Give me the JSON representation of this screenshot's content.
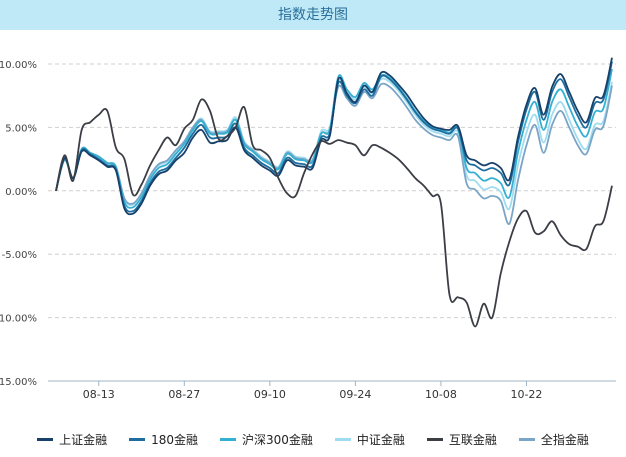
{
  "title": "指数走势图",
  "chart_data": {
    "type": "line",
    "y_ticks": [
      "10.00%",
      "5.00%",
      "0.00%",
      "-5.00%",
      "-10.00%",
      "-15.00%"
    ],
    "ylim": [
      -15,
      12
    ],
    "x_ticks": [
      "08-13",
      "08-27",
      "09-10",
      "09-24",
      "10-08",
      "10-22"
    ],
    "x_tick_index": [
      5,
      15,
      25,
      35,
      45,
      55
    ],
    "x_count": 66,
    "grid": true,
    "legend_position": "bottom",
    "series": [
      {
        "name": "上证金融",
        "color": "#17416b",
        "values": [
          0,
          2.6,
          1.0,
          3.1,
          2.8,
          2.4,
          1.9,
          1.6,
          -1.4,
          -1.8,
          -1.0,
          0.4,
          1.3,
          1.6,
          2.4,
          3.0,
          4.2,
          4.8,
          3.8,
          3.9,
          4.0,
          5.0,
          3.2,
          2.6,
          2.0,
          1.6,
          1.2,
          2.4,
          2.0,
          1.9,
          1.8,
          4.0,
          4.3,
          8.8,
          7.7,
          7.0,
          8.3,
          7.8,
          9.3,
          9.1,
          8.4,
          7.6,
          6.6,
          5.7,
          5.1,
          4.9,
          4.8,
          5.1,
          2.8,
          2.4,
          2.0,
          2.2,
          1.8,
          0.9,
          4.2,
          6.8,
          8.1,
          6.0,
          8.2,
          9.2,
          7.8,
          6.3,
          5.4,
          7.3,
          7.5,
          10.5
        ]
      },
      {
        "name": "180金融",
        "color": "#1d6e9e",
        "values": [
          0,
          2.5,
          1.0,
          3.2,
          2.9,
          2.5,
          2.0,
          1.7,
          -1.2,
          -1.6,
          -0.8,
          0.6,
          1.5,
          1.8,
          2.6,
          3.4,
          4.5,
          5.2,
          4.2,
          4.2,
          4.3,
          5.3,
          3.4,
          2.8,
          2.2,
          1.8,
          1.4,
          2.6,
          2.2,
          2.1,
          2.0,
          4.2,
          4.5,
          8.5,
          7.5,
          6.9,
          8.0,
          7.5,
          9.0,
          8.8,
          8.1,
          7.2,
          6.2,
          5.4,
          4.9,
          4.7,
          4.5,
          4.9,
          2.4,
          2.0,
          1.6,
          1.8,
          1.4,
          0.5,
          3.8,
          6.4,
          7.8,
          5.6,
          7.8,
          8.8,
          7.4,
          5.9,
          5.0,
          6.9,
          7.2,
          10.2
        ]
      },
      {
        "name": "沪深300金融",
        "color": "#35b0d2",
        "values": [
          0,
          2.5,
          1.0,
          3.3,
          3.0,
          2.7,
          2.2,
          1.9,
          -0.9,
          -1.3,
          -0.5,
          0.9,
          1.8,
          2.1,
          2.9,
          3.7,
          4.8,
          5.5,
          4.5,
          4.5,
          4.6,
          5.6,
          3.7,
          3.1,
          2.5,
          2.1,
          1.7,
          2.9,
          2.5,
          2.4,
          2.3,
          4.5,
          4.8,
          9.0,
          8.0,
          7.4,
          8.5,
          8.0,
          9.1,
          8.9,
          8.2,
          7.3,
          6.3,
          5.5,
          5.0,
          4.8,
          4.6,
          4.9,
          1.8,
          1.4,
          0.8,
          1.0,
          0.6,
          -0.5,
          3.0,
          5.6,
          7.0,
          4.8,
          7.0,
          8.0,
          6.6,
          5.1,
          4.3,
          6.2,
          6.5,
          9.6
        ]
      },
      {
        "name": "中证金融",
        "color": "#9fdcf0",
        "values": [
          0,
          2.4,
          1.0,
          3.2,
          2.9,
          2.6,
          2.1,
          1.8,
          -0.7,
          -1.1,
          -0.3,
          1.1,
          2.0,
          2.3,
          3.1,
          3.9,
          5.0,
          5.7,
          4.7,
          4.7,
          4.8,
          5.8,
          3.9,
          3.3,
          2.7,
          2.3,
          1.9,
          3.1,
          2.7,
          2.6,
          2.5,
          4.7,
          5.0,
          8.7,
          7.8,
          7.2,
          8.2,
          7.7,
          8.8,
          8.6,
          7.9,
          7.0,
          6.0,
          5.2,
          4.7,
          4.5,
          4.3,
          4.6,
          1.2,
          0.8,
          0.1,
          0.3,
          -0.1,
          -1.4,
          2.0,
          4.6,
          6.0,
          3.8,
          6.0,
          7.0,
          5.6,
          4.1,
          3.3,
          5.2,
          5.5,
          8.6
        ]
      },
      {
        "name": "互联金融",
        "color": "#3b3e45",
        "values": [
          0,
          2.8,
          0.8,
          4.8,
          5.4,
          6.0,
          6.3,
          3.4,
          2.5,
          -0.3,
          0.5,
          2.0,
          3.2,
          4.2,
          3.6,
          4.9,
          5.6,
          7.2,
          6.3,
          4.1,
          4.3,
          5.0,
          6.6,
          3.6,
          3.2,
          2.6,
          1.0,
          -0.2,
          -0.4,
          1.4,
          2.9,
          3.9,
          3.7,
          4.0,
          3.8,
          3.6,
          2.8,
          3.6,
          3.4,
          3.0,
          2.5,
          1.8,
          1.0,
          0.4,
          -0.4,
          -1.0,
          -8.2,
          -8.4,
          -8.8,
          -10.7,
          -8.9,
          -10.0,
          -6.5,
          -4.0,
          -2.2,
          -1.6,
          -3.3,
          -3.2,
          -2.4,
          -3.5,
          -4.2,
          -4.4,
          -4.6,
          -2.8,
          -2.4,
          0.4
        ]
      },
      {
        "name": "全指金融",
        "color": "#7aa5c6",
        "values": [
          0,
          2.5,
          1.0,
          3.3,
          3.0,
          2.7,
          2.2,
          1.9,
          -0.6,
          -1.0,
          -0.2,
          1.2,
          2.1,
          2.4,
          3.2,
          3.9,
          5.0,
          5.6,
          4.6,
          4.6,
          4.7,
          5.6,
          3.8,
          3.2,
          2.6,
          2.2,
          1.8,
          3.0,
          2.6,
          2.5,
          2.4,
          4.5,
          4.8,
          8.2,
          7.3,
          6.7,
          7.8,
          7.3,
          8.4,
          8.2,
          7.5,
          6.6,
          5.6,
          4.9,
          4.4,
          4.2,
          4.0,
          4.3,
          0.6,
          0.1,
          -0.6,
          -0.4,
          -0.8,
          -2.6,
          0.8,
          3.6,
          5.2,
          3.0,
          5.2,
          6.3,
          5.0,
          3.6,
          2.9,
          4.8,
          5.1,
          8.3
        ]
      }
    ]
  }
}
